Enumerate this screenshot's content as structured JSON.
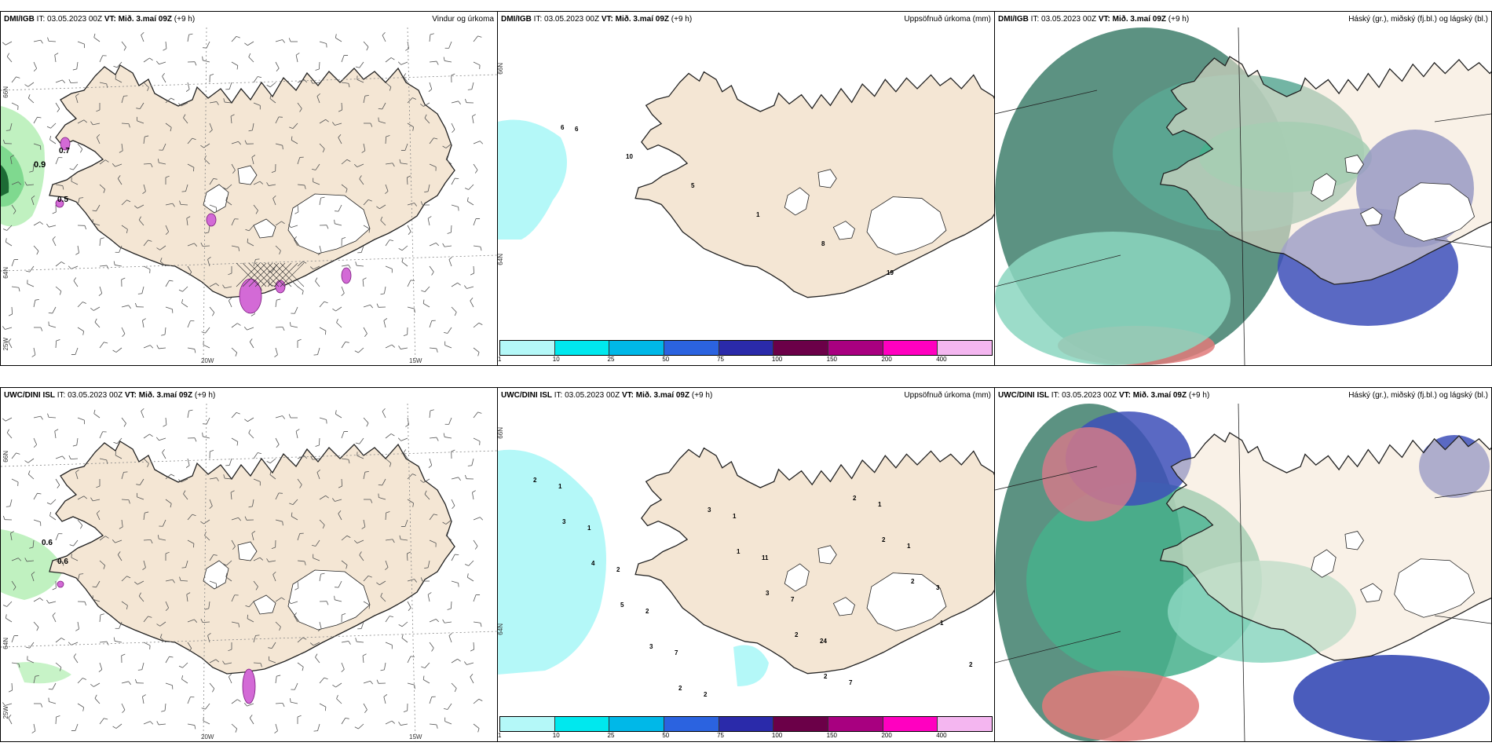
{
  "panels": [
    {
      "id": "p1",
      "model": "DMI/IGB",
      "it_label": "IT:",
      "it": "03.05.2023 00Z",
      "vt_label": "VT:",
      "vt": "Mið. 3.maí 09Z",
      "lead": "(+9 h)",
      "right": "Vindur og úrkoma",
      "kind": "wind"
    },
    {
      "id": "p2",
      "model": "DMI/IGB",
      "it_label": "IT:",
      "it": "03.05.2023 00Z",
      "vt_label": "VT:",
      "vt": "Mið. 3.maí 09Z",
      "lead": "(+9 h)",
      "right": "Uppsöfnuð úrkoma (mm)",
      "kind": "accum"
    },
    {
      "id": "p3",
      "model": "DMI/IGB",
      "it_label": "IT:",
      "it": "03.05.2023 00Z",
      "vt_label": "VT:",
      "vt": "Mið. 3.maí 09Z",
      "lead": "(+9 h)",
      "right": "Háský (gr.), miðský (fj.bl.) og lágský (bl.)",
      "kind": "cloud"
    },
    {
      "id": "p4",
      "model": "UWC/DINI ISL",
      "it_label": "IT:",
      "it": "03.05.2023 00Z",
      "vt_label": "VT:",
      "vt": "Mið. 3.maí 09Z",
      "lead": "(+9 h)",
      "right": "",
      "kind": "wind"
    },
    {
      "id": "p5",
      "model": "UWC/DINI ISL",
      "it_label": "IT:",
      "it": "03.05.2023 00Z",
      "vt_label": "VT:",
      "vt": "Mið. 3.maí 09Z",
      "lead": "(+9 h)",
      "right": "Uppsöfnuð úrkoma (mm)",
      "kind": "accum"
    },
    {
      "id": "p6",
      "model": "UWC/DINI ISL",
      "it_label": "IT:",
      "it": "03.05.2023 00Z",
      "vt_label": "VT:",
      "vt": "Mið. 3.maí 09Z",
      "lead": "(+9 h)",
      "right": "Háský (gr.), miðský (fj.bl.) og lágský (bl.)",
      "kind": "cloud"
    }
  ],
  "axis_labels": {
    "lon_20": "20W",
    "lon_15": "15W",
    "lon_25": "25W",
    "lat_66": "66N",
    "lat_64": "64N"
  },
  "colorbar": {
    "ticks": [
      "1",
      "10",
      "25",
      "50",
      "75",
      "100",
      "150",
      "200",
      "400"
    ],
    "colors": [
      "#b4f8f8",
      "#00e8ee",
      "#00b8e8",
      "#2b63e0",
      "#2a2aaa",
      "#6b0048",
      "#a80080",
      "#ff00c0",
      "#f4b6f0"
    ]
  },
  "precip_labels_p1": [
    "0.7",
    "0.9",
    "0.5"
  ],
  "precip_labels_p4": [
    "0.6",
    "0.6"
  ],
  "accum_labels_p2": [
    "6",
    "10",
    "5",
    "1",
    "8",
    "19",
    "6"
  ],
  "accum_labels_p5": [
    "2",
    "3",
    "4",
    "5",
    "3",
    "2",
    "3",
    "1",
    "3",
    "2",
    "2",
    "2",
    "2",
    "2",
    "1",
    "2",
    "1",
    "1",
    "2",
    "2",
    "7",
    "2",
    "1",
    "11",
    "7",
    "24",
    "7",
    "1",
    "1",
    "3"
  ],
  "colors": {
    "land": "#f4e6d4",
    "ice": "#ffffff",
    "coast": "#222222",
    "precip_light": "#b9f0b9",
    "precip_mid": "#7fd98f",
    "precip_dark": "#1d6b35",
    "magenta": "#d36ad6"
  }
}
